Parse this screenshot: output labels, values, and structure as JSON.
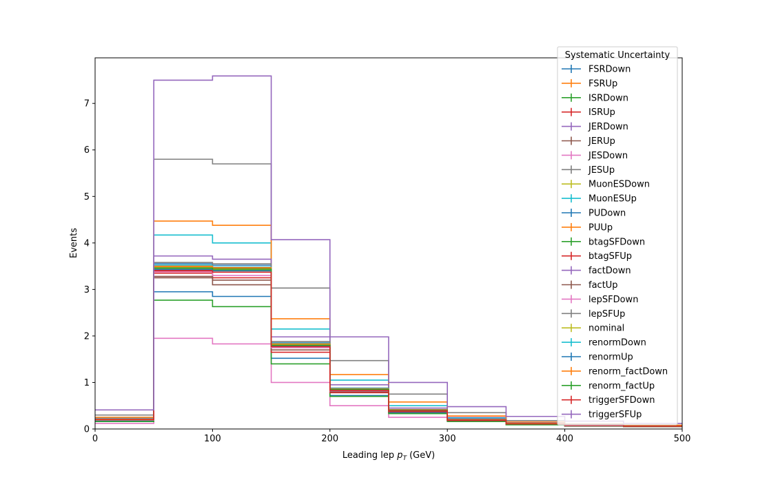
{
  "chart_data": {
    "type": "step",
    "title": "",
    "xlabel": "Leading lep",
    "xlabel_symbol": "p",
    "xlabel_subscript": "T",
    "xlabel_unit": "(GeV)",
    "ylabel": "Events",
    "xlim": [
      0,
      500
    ],
    "ylim": [
      0,
      7.98
    ],
    "xticks": [
      "0",
      "100",
      "200",
      "300",
      "400",
      "500"
    ],
    "yticks": [
      "0",
      "1",
      "2",
      "3",
      "4",
      "5",
      "6",
      "7"
    ],
    "grid": false,
    "legend": {
      "title": "Systematic Uncertainty",
      "placement": "top-right"
    },
    "bin_edges": [
      0,
      50,
      100,
      150,
      200,
      250,
      300,
      350,
      400,
      450,
      500
    ],
    "series": [
      {
        "name": "FSRDown",
        "color": "#1f77b4",
        "values": [
          0.2,
          3.55,
          3.52,
          1.85,
          0.85,
          0.4,
          0.2,
          0.12,
          0.08,
          0.06
        ]
      },
      {
        "name": "FSRUp",
        "color": "#ff7f0e",
        "values": [
          0.22,
          3.48,
          3.45,
          1.83,
          0.86,
          0.41,
          0.2,
          0.12,
          0.08,
          0.06
        ]
      },
      {
        "name": "ISRDown",
        "color": "#2ca02c",
        "values": [
          0.2,
          3.45,
          3.42,
          1.8,
          0.84,
          0.4,
          0.19,
          0.11,
          0.08,
          0.06
        ]
      },
      {
        "name": "ISRUp",
        "color": "#d62728",
        "values": [
          0.21,
          3.42,
          3.4,
          1.78,
          0.83,
          0.39,
          0.19,
          0.11,
          0.08,
          0.06
        ]
      },
      {
        "name": "JERDown",
        "color": "#9467bd",
        "values": [
          0.21,
          3.5,
          3.48,
          1.82,
          0.85,
          0.4,
          0.2,
          0.12,
          0.08,
          0.06
        ]
      },
      {
        "name": "JERUp",
        "color": "#8c564b",
        "values": [
          0.2,
          3.25,
          3.1,
          1.75,
          0.82,
          0.38,
          0.19,
          0.11,
          0.08,
          0.06
        ]
      },
      {
        "name": "JESDown",
        "color": "#e377c2",
        "values": [
          0.12,
          1.95,
          1.83,
          1.0,
          0.5,
          0.25,
          0.25,
          0.1,
          0.06,
          0.05
        ]
      },
      {
        "name": "JESUp",
        "color": "#7f7f7f",
        "values": [
          0.3,
          5.8,
          5.7,
          3.03,
          1.47,
          0.75,
          0.35,
          0.18,
          0.11,
          0.08
        ]
      },
      {
        "name": "MuonESDown",
        "color": "#bcbd22",
        "values": [
          0.2,
          3.45,
          3.4,
          1.8,
          0.84,
          0.39,
          0.19,
          0.11,
          0.08,
          0.06
        ]
      },
      {
        "name": "MuonESUp",
        "color": "#17becf",
        "values": [
          0.24,
          4.17,
          4.0,
          2.15,
          1.05,
          0.5,
          0.24,
          0.14,
          0.09,
          0.07
        ]
      },
      {
        "name": "PUDown",
        "color": "#1f77b4",
        "values": [
          0.17,
          2.95,
          2.85,
          1.52,
          0.72,
          0.35,
          0.17,
          0.1,
          0.07,
          0.05
        ]
      },
      {
        "name": "PUUp",
        "color": "#ff7f0e",
        "values": [
          0.25,
          4.47,
          4.38,
          2.37,
          1.17,
          0.58,
          0.28,
          0.15,
          0.1,
          0.08
        ]
      },
      {
        "name": "btagSFDown",
        "color": "#2ca02c",
        "values": [
          0.16,
          2.77,
          2.63,
          1.4,
          0.7,
          0.33,
          0.16,
          0.09,
          0.06,
          0.05
        ]
      },
      {
        "name": "btagSFUp",
        "color": "#d62728",
        "values": [
          0.19,
          3.35,
          3.25,
          1.65,
          0.78,
          0.37,
          0.18,
          0.11,
          0.07,
          0.06
        ]
      },
      {
        "name": "factDown",
        "color": "#9467bd",
        "values": [
          0.22,
          3.72,
          3.65,
          1.98,
          0.95,
          0.45,
          0.22,
          0.13,
          0.09,
          0.06
        ]
      },
      {
        "name": "factUp",
        "color": "#8c564b",
        "values": [
          0.19,
          3.28,
          3.2,
          1.7,
          0.8,
          0.38,
          0.18,
          0.11,
          0.07,
          0.05
        ]
      },
      {
        "name": "lepSFDown",
        "color": "#e377c2",
        "values": [
          0.19,
          3.38,
          3.3,
          1.75,
          0.82,
          0.39,
          0.19,
          0.11,
          0.07,
          0.06
        ]
      },
      {
        "name": "lepSFUp",
        "color": "#7f7f7f",
        "values": [
          0.21,
          3.58,
          3.55,
          1.88,
          0.88,
          0.42,
          0.21,
          0.12,
          0.08,
          0.06
        ]
      },
      {
        "name": "nominal",
        "color": "#bcbd22",
        "values": [
          0.2,
          3.47,
          3.43,
          1.81,
          0.85,
          0.4,
          0.2,
          0.11,
          0.08,
          0.06
        ]
      },
      {
        "name": "renormDown",
        "color": "#17becf",
        "values": [
          0.21,
          3.52,
          3.48,
          1.84,
          0.87,
          0.41,
          0.2,
          0.12,
          0.08,
          0.06
        ]
      },
      {
        "name": "renormUp",
        "color": "#1f77b4",
        "values": [
          0.2,
          3.43,
          3.4,
          1.79,
          0.84,
          0.4,
          0.19,
          0.11,
          0.08,
          0.06
        ]
      },
      {
        "name": "renorm_factDown",
        "color": "#ff7f0e",
        "values": [
          0.21,
          3.5,
          3.47,
          1.83,
          0.86,
          0.41,
          0.2,
          0.12,
          0.08,
          0.06
        ]
      },
      {
        "name": "renorm_factUp",
        "color": "#2ca02c",
        "values": [
          0.2,
          3.46,
          3.44,
          1.8,
          0.85,
          0.4,
          0.19,
          0.11,
          0.08,
          0.06
        ]
      },
      {
        "name": "triggerSFDown",
        "color": "#d62728",
        "values": [
          0.2,
          3.4,
          3.37,
          1.77,
          0.83,
          0.39,
          0.19,
          0.11,
          0.08,
          0.06
        ]
      },
      {
        "name": "triggerSFUp",
        "color": "#9467bd",
        "values": [
          0.41,
          7.5,
          7.59,
          4.07,
          1.98,
          1.0,
          0.48,
          0.27,
          0.17,
          0.12
        ]
      }
    ]
  }
}
